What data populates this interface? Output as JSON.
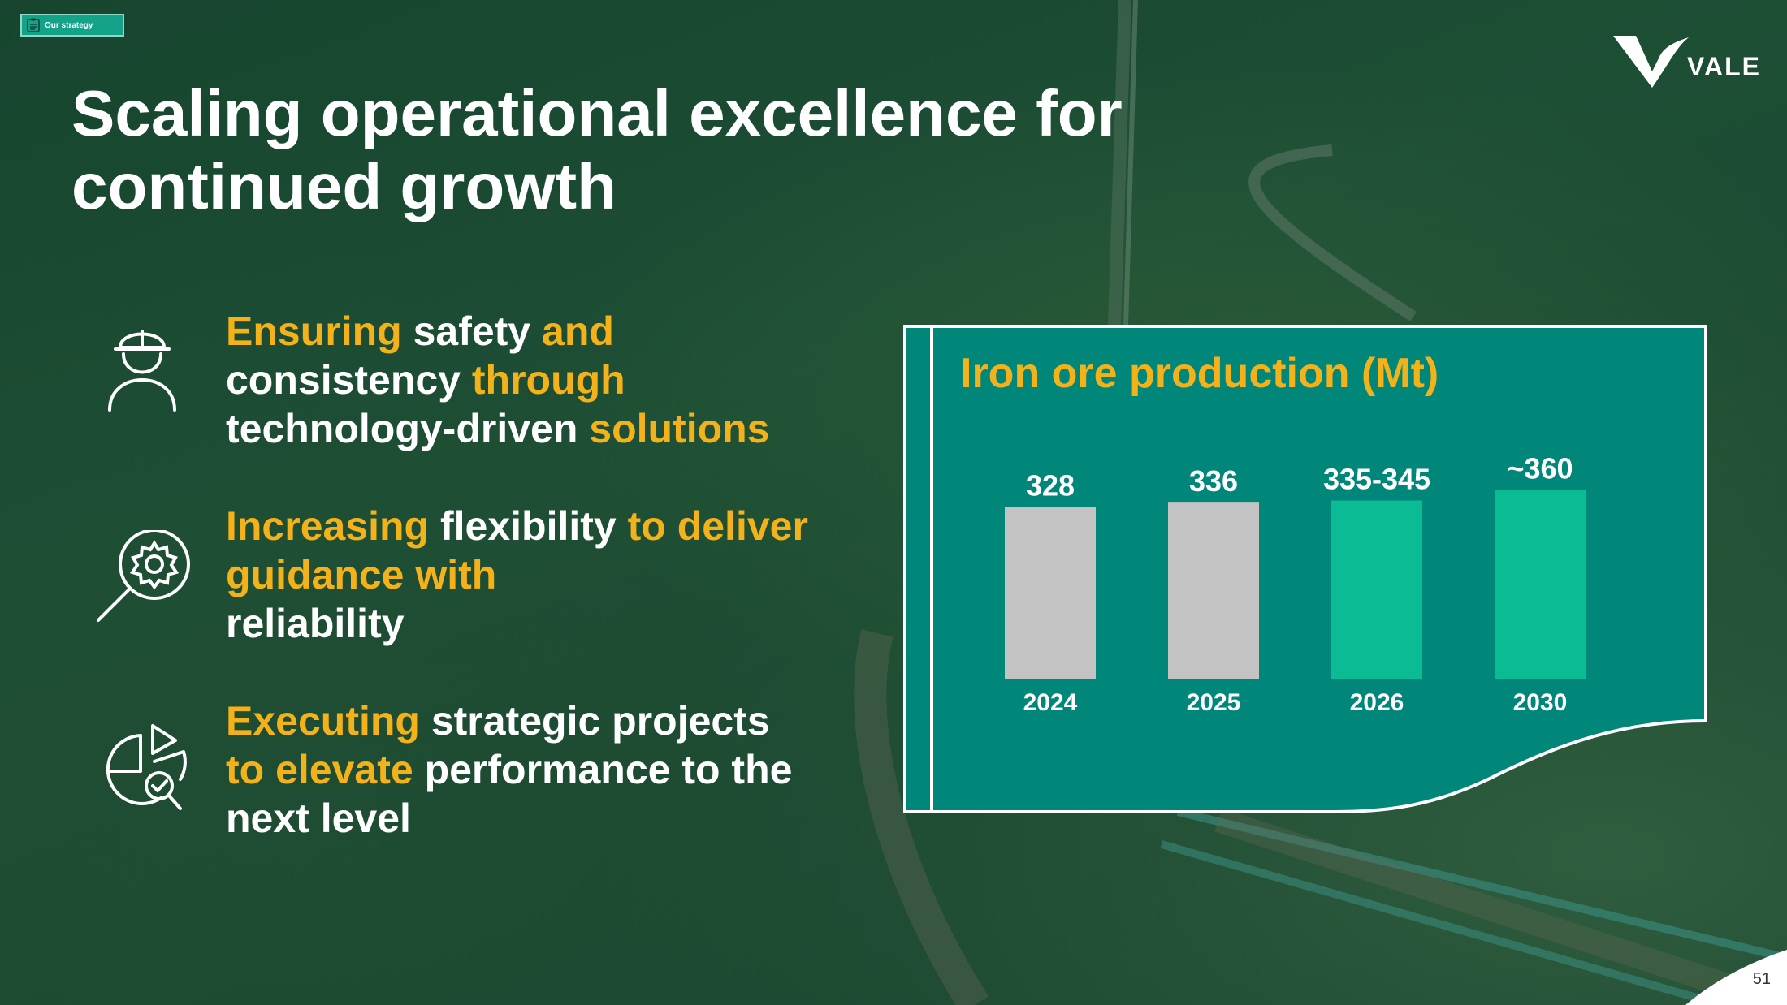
{
  "badge": {
    "label": "Our strategy",
    "icon": "clipboard-icon"
  },
  "logo": {
    "text": "VALE"
  },
  "title": {
    "line1": "Scaling operational excellence for",
    "line2": "continued growth"
  },
  "features": [
    {
      "icon": "worker-helmet-icon",
      "parts": [
        {
          "text": "Ensuring",
          "style": "hl"
        },
        {
          "text": " safety ",
          "style": "wt"
        },
        {
          "text": "and",
          "style": "hl"
        },
        {
          "text": "consistency ",
          "style": "wt"
        },
        {
          "text": "through",
          "style": "hl"
        },
        {
          "text": "technology-driven ",
          "style": "wt"
        },
        {
          "text": "solutions",
          "style": "hl"
        }
      ]
    },
    {
      "icon": "gear-magnifier-icon",
      "parts": [
        {
          "text": "Increasing",
          "style": "hl"
        },
        {
          "text": " flexibility ",
          "style": "wt"
        },
        {
          "text": "to deliver guidance with",
          "style": "hl"
        },
        {
          "text": " reliability",
          "style": "wt"
        }
      ]
    },
    {
      "icon": "pie-chart-check-icon",
      "parts": [
        {
          "text": "Executing",
          "style": "hl"
        },
        {
          "text": " strategic projects ",
          "style": "wt"
        },
        {
          "text": "to elevate",
          "style": "hl"
        },
        {
          "text": " performance to the next level",
          "style": "wt"
        }
      ]
    }
  ],
  "page_number": "51",
  "colors": {
    "highlight": "#f3b21a",
    "card_bg": "#00877a",
    "bar_actual": "#c3c3c3",
    "bar_projected": "#0bbb94"
  },
  "chart_data": {
    "type": "bar",
    "title": "Iron ore production (Mt)",
    "categories": [
      "2024",
      "2025",
      "2026",
      "2030"
    ],
    "values": [
      328,
      336,
      340,
      360
    ],
    "value_labels": [
      "328",
      "336",
      "335-345",
      "~360"
    ],
    "bar_kinds": [
      "actual",
      "actual",
      "projected",
      "projected"
    ],
    "ylim": [
      0,
      380
    ]
  }
}
